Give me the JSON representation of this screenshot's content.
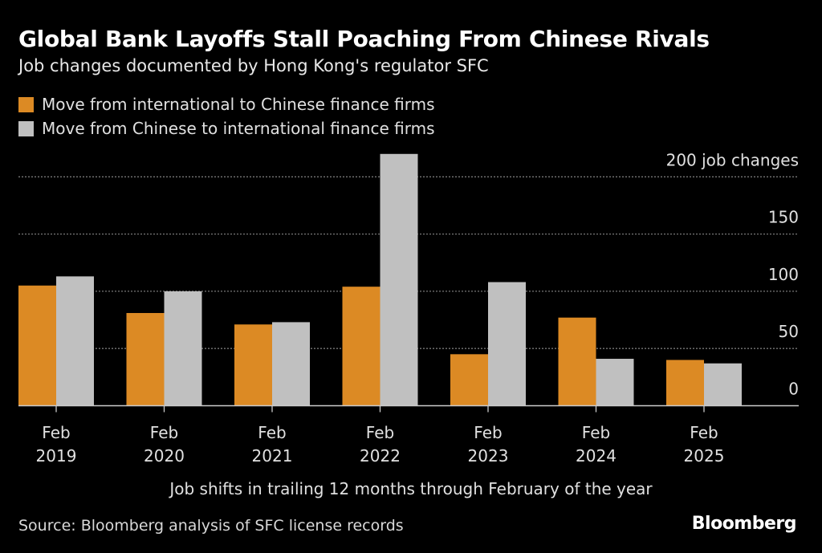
{
  "chart_data": {
    "type": "bar",
    "title": "Global Bank Layoffs Stall Poaching From Chinese Rivals",
    "subtitle": "Job changes documented by Hong Kong's regulator SFC",
    "categories": [
      "Feb 2019",
      "Feb 2020",
      "Feb 2021",
      "Feb 2022",
      "Feb 2023",
      "Feb 2024",
      "Feb 2025"
    ],
    "category_lines": [
      [
        "Feb",
        "2019"
      ],
      [
        "Feb",
        "2020"
      ],
      [
        "Feb",
        "2021"
      ],
      [
        "Feb",
        "2022"
      ],
      [
        "Feb",
        "2023"
      ],
      [
        "Feb",
        "2024"
      ],
      [
        "Feb",
        "2025"
      ]
    ],
    "series": [
      {
        "name": "Move from international to Chinese finance firms",
        "color": "#dc8a24",
        "values": [
          105,
          81,
          71,
          104,
          45,
          77,
          40
        ]
      },
      {
        "name": "Move from Chinese to international finance firms",
        "color": "#c0c0c0",
        "values": [
          113,
          100,
          73,
          220,
          108,
          41,
          37
        ]
      }
    ],
    "ylim": [
      0,
      220
    ],
    "yticks": [
      0,
      50,
      100,
      150,
      200
    ],
    "ytick_labels": [
      "0",
      "50",
      "100",
      "150",
      "200 job changes"
    ],
    "xlabel": "Job shifts in trailing 12 months through February of the year",
    "grid": true,
    "legend_position": "top-left"
  },
  "source": "Source: Bloomberg analysis of SFC license records",
  "logo": "Bloomberg"
}
